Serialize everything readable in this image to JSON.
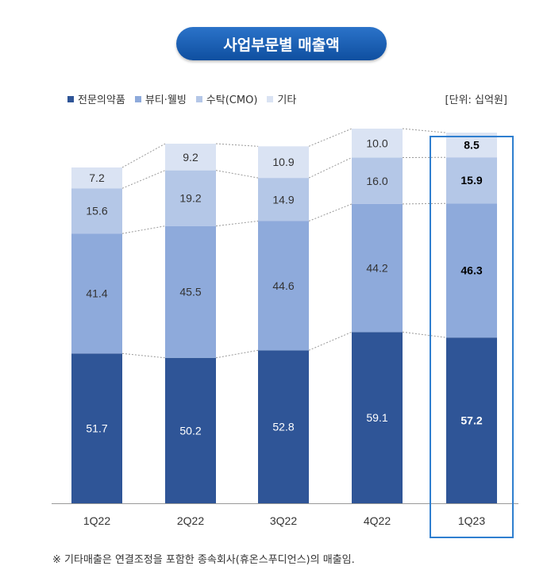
{
  "title": "사업부문별 매출액",
  "unit": "[단위: 십억원]",
  "footnote": "※ 기타매출은 연결조정을 포함한 종속회사(휴온스푸디언스)의 매출임.",
  "colors": {
    "title_bg": "#1a5fb4",
    "highlight_border": "#2f7fcf"
  },
  "chart_data": {
    "type": "bar",
    "stacked": true,
    "categories": [
      "1Q22",
      "2Q22",
      "3Q22",
      "4Q22",
      "1Q23"
    ],
    "highlight_category": "1Q23",
    "series": [
      {
        "name": "전문의약품",
        "color": "#2f5597",
        "values": [
          51.7,
          50.2,
          52.8,
          59.1,
          57.2
        ],
        "labels": [
          "51.7",
          "50.2",
          "52.8",
          "59.1",
          "57.2"
        ]
      },
      {
        "name": "뷰티·웰빙",
        "color": "#8eaadb",
        "values": [
          41.4,
          45.5,
          44.6,
          44.2,
          46.3
        ],
        "labels": [
          "41.4",
          "45.5",
          "44.6",
          "44.2",
          "46.3"
        ]
      },
      {
        "name": "수탁(CMO)",
        "color": "#b4c7e7",
        "values": [
          15.6,
          19.2,
          14.9,
          16.0,
          15.9
        ],
        "labels": [
          "15.6",
          "19.2",
          "14.9",
          "16.0",
          "15.9"
        ]
      },
      {
        "name": "기타",
        "color": "#dae3f3",
        "values": [
          7.2,
          9.2,
          10.9,
          10.0,
          8.5
        ],
        "labels": [
          "7.2",
          "9.2",
          "10.9",
          "10.0",
          "8.5"
        ]
      }
    ],
    "legend_position": "top-left",
    "grid": false
  }
}
